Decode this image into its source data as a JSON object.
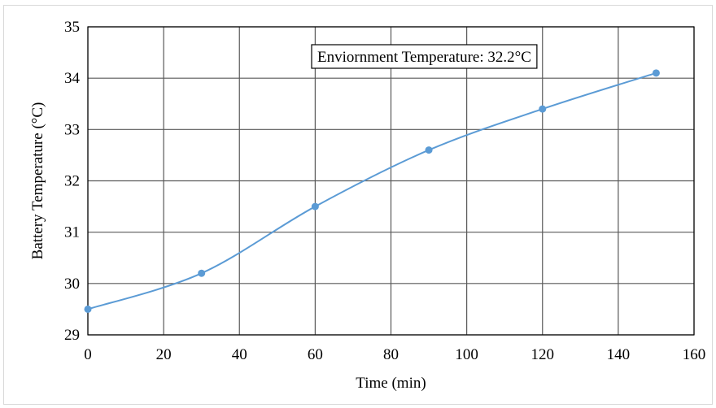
{
  "chart_data": {
    "type": "line",
    "xlabel": "Time (min)",
    "ylabel": "Battery Temperature (°C)",
    "xlim": [
      0,
      160
    ],
    "ylim": [
      29,
      35
    ],
    "x_ticks": [
      0,
      20,
      40,
      60,
      80,
      100,
      120,
      140,
      160
    ],
    "y_ticks": [
      29,
      30,
      31,
      32,
      33,
      34,
      35
    ],
    "x_tick_labels": [
      "0",
      "20",
      "40",
      "60",
      "80",
      "100",
      "120",
      "140",
      "160"
    ],
    "y_tick_labels": [
      "29",
      "30",
      "31",
      "32",
      "33",
      "34",
      "35"
    ],
    "grid": true,
    "series": [
      {
        "color": "#5b9bd5",
        "marker": "circle",
        "smooth": true,
        "x": [
          0,
          30,
          60,
          90,
          120,
          150
        ],
        "y": [
          29.5,
          30.2,
          31.5,
          32.6,
          33.4,
          34.1
        ]
      }
    ],
    "annotation": "Enviornment Temperature: 32.2°C"
  }
}
